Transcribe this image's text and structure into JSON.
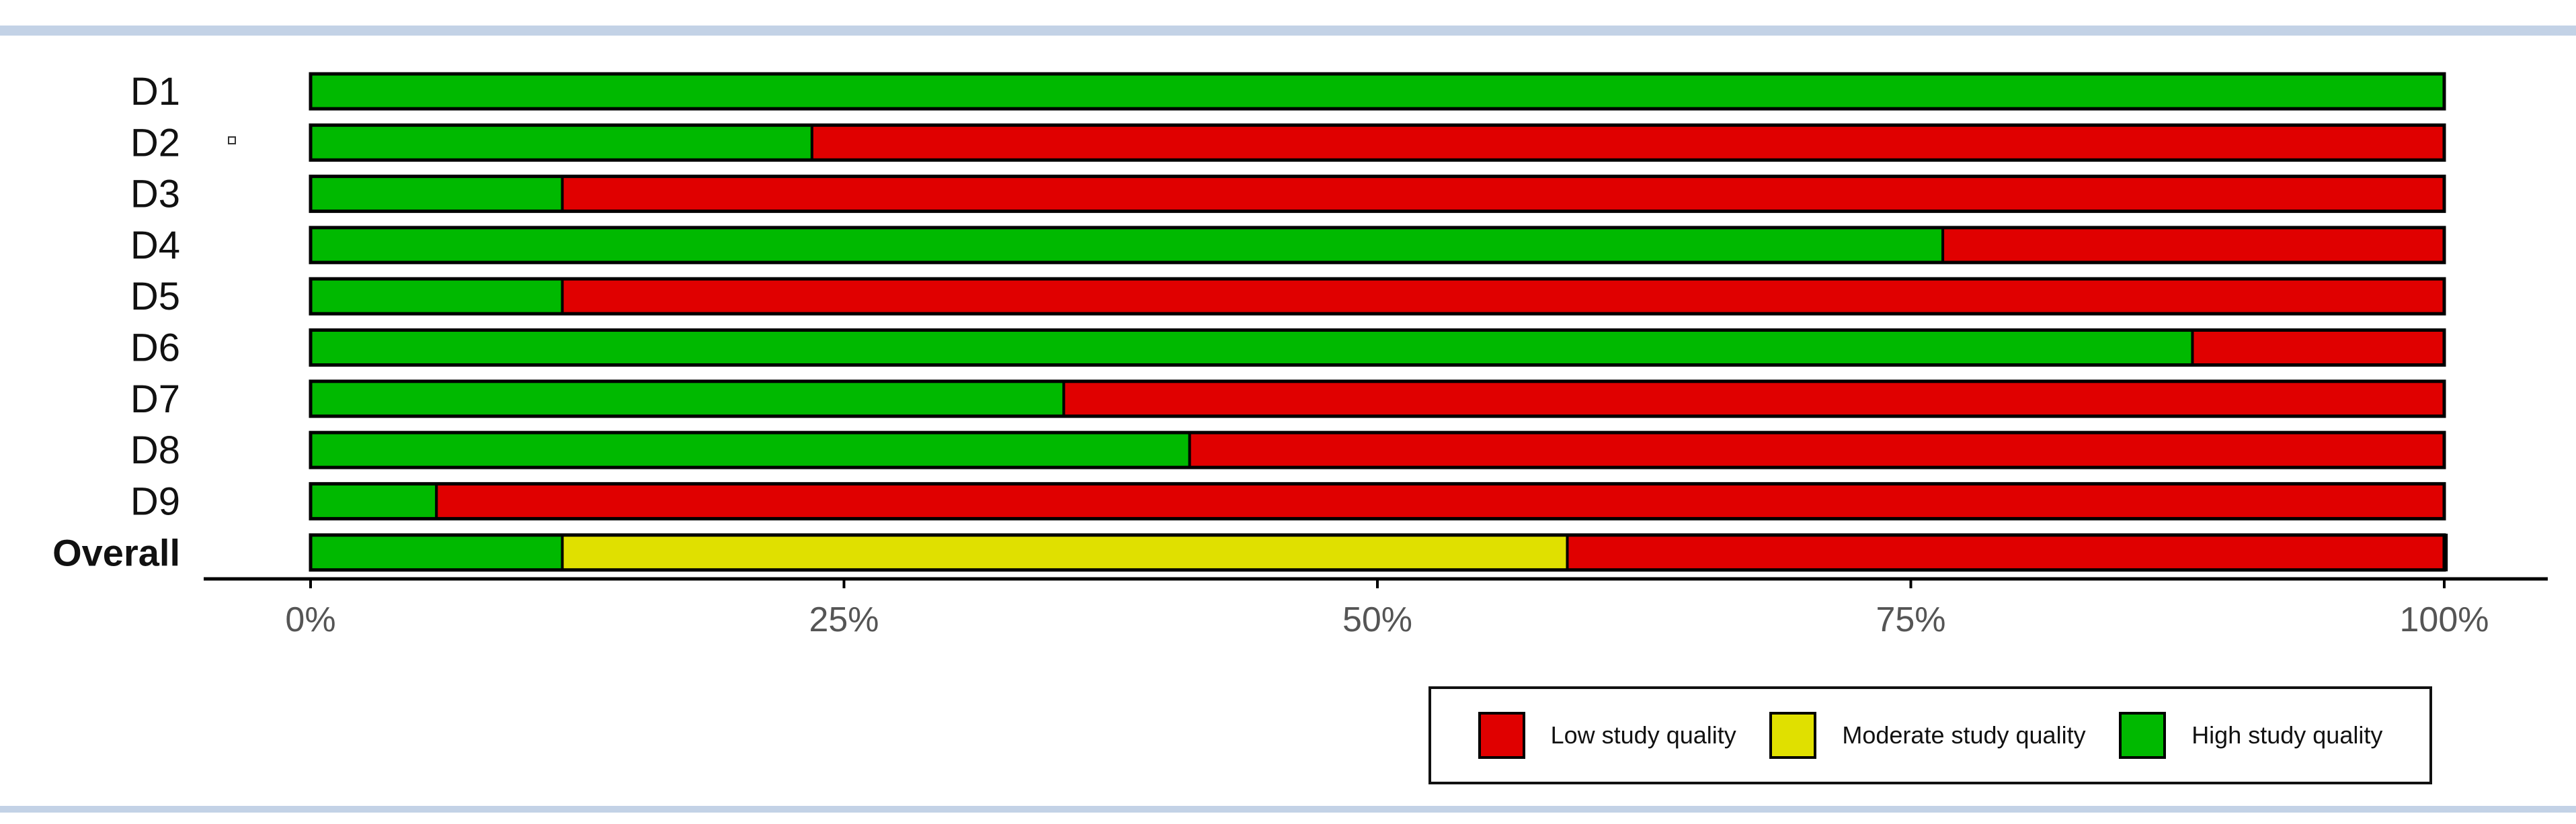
{
  "chart_data": {
    "type": "bar",
    "orientation": "horizontal",
    "stacked": true,
    "percent_stacked": true,
    "categories": [
      "D1",
      "D2",
      "D3",
      "D4",
      "D5",
      "D6",
      "D7",
      "D8",
      "D9",
      "Overall"
    ],
    "bold_categories": [
      "Overall"
    ],
    "series": [
      {
        "name": "High study quality",
        "color": "#00b900",
        "values": [
          100,
          23.5,
          11.8,
          76.5,
          11.8,
          88.2,
          35.3,
          41.2,
          5.9,
          11.8
        ]
      },
      {
        "name": "Moderate study quality",
        "color": "#e0e000",
        "values": [
          0,
          0,
          0,
          0,
          0,
          0,
          0,
          0,
          0,
          47.1
        ]
      },
      {
        "name": "Low study quality",
        "color": "#e00000",
        "values": [
          0,
          76.5,
          88.2,
          23.5,
          88.2,
          11.8,
          64.7,
          58.8,
          94.1,
          41.2
        ]
      }
    ],
    "x_ticks": [
      "0%",
      "25%",
      "50%",
      "75%",
      "100%"
    ],
    "xlim": [
      0,
      100
    ],
    "grid": false,
    "legend_position": "bottom-right",
    "legend": [
      {
        "label": "Low study quality",
        "color": "#e00000"
      },
      {
        "label": "Moderate study quality",
        "color": "#e0e000"
      },
      {
        "label": "High study quality",
        "color": "#00b900"
      }
    ]
  }
}
